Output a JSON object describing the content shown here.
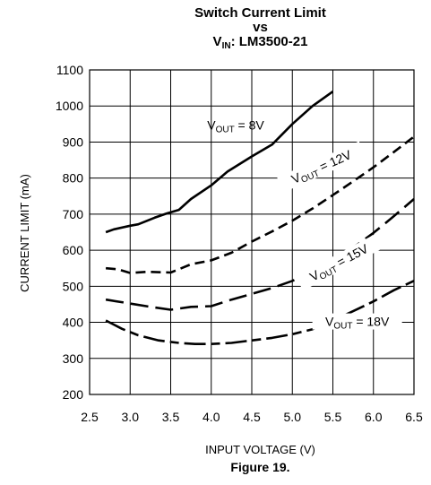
{
  "chart_data": {
    "type": "line",
    "title_line1": "Switch Current Limit",
    "title_line2": "vs",
    "title_line3_main": "V",
    "title_line3_sub": "IN",
    "title_line3_rest": ": LM3500-21",
    "xlabel": "INPUT VOLTAGE (V)",
    "ylabel": "CURRENT LIMIT (mA)",
    "xlim": [
      2.5,
      6.5
    ],
    "ylim": [
      200,
      1100
    ],
    "x_ticks": [
      "2.5",
      "3.0",
      "3.5",
      "4.0",
      "4.5",
      "5.0",
      "5.5",
      "6.0",
      "6.5"
    ],
    "y_ticks": [
      "200",
      "300",
      "400",
      "500",
      "600",
      "700",
      "800",
      "900",
      "1000",
      "1100"
    ],
    "grid": true,
    "series": [
      {
        "name": "VOUT = 8V",
        "label_main": "V",
        "label_sub": "OUT",
        "label_rest": " = 8V",
        "style": "solid",
        "x": [
          2.7,
          2.8,
          3.0,
          3.1,
          3.3,
          3.45,
          3.6,
          3.75,
          4.0,
          4.2,
          4.5,
          4.75,
          5.0,
          5.25,
          5.5
        ],
        "y": [
          650,
          658,
          668,
          672,
          690,
          702,
          712,
          742,
          780,
          818,
          860,
          893,
          950,
          1000,
          1040
        ]
      },
      {
        "name": "VOUT = 12V",
        "label_main": "V",
        "label_sub": "OUT",
        "label_rest": " = 12V",
        "style": "dashed",
        "x": [
          2.7,
          2.85,
          3.0,
          3.2,
          3.5,
          3.75,
          4.0,
          4.25,
          4.5,
          4.75,
          5.0,
          5.25,
          5.5,
          5.75,
          6.0,
          6.25,
          6.5
        ],
        "y": [
          550,
          547,
          537,
          540,
          538,
          561,
          572,
          593,
          624,
          652,
          682,
          716,
          753,
          791,
          830,
          872,
          915
        ]
      },
      {
        "name": "VOUT = 15V",
        "label_main": "V",
        "label_sub": "OUT",
        "label_rest": " = 15V",
        "style": "long-dash",
        "x": [
          2.7,
          3.0,
          3.25,
          3.5,
          3.75,
          4.0,
          4.25,
          4.5,
          4.75,
          5.0,
          5.25,
          5.5,
          5.75,
          6.0,
          6.25,
          6.5
        ],
        "y": [
          463,
          452,
          443,
          435,
          443,
          445,
          463,
          479,
          495,
          515,
          540,
          573,
          607,
          648,
          694,
          742
        ]
      },
      {
        "name": "VOUT = 18V",
        "label_main": "V",
        "label_sub": "OUT",
        "label_rest": " = 18V",
        "style": "dash-dot",
        "x": [
          2.7,
          2.9,
          3.1,
          3.35,
          3.6,
          3.8,
          4.0,
          4.25,
          4.5,
          4.75,
          5.0,
          5.25,
          5.5,
          5.75,
          6.0,
          6.25,
          6.5
        ],
        "y": [
          405,
          382,
          364,
          350,
          343,
          340,
          340,
          343,
          350,
          357,
          367,
          381,
          405,
          431,
          458,
          489,
          515
        ]
      }
    ]
  },
  "figure_caption": "Figure 19."
}
